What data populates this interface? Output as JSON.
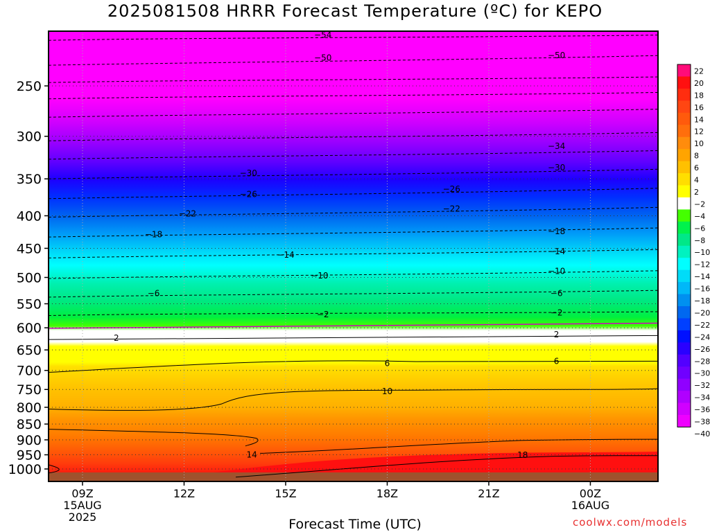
{
  "chart_data": {
    "type": "heatmap",
    "title": "2025081508 HRRR Forecast Temperature (ºC) for KEPO",
    "xlabel": "Forecast Time (UTC)",
    "ylabel": "",
    "x_ticks": [
      {
        "label": [
          "09Z",
          "15AUG",
          "2025"
        ],
        "hour": 9
      },
      {
        "label": [
          "12Z"
        ],
        "hour": 12
      },
      {
        "label": [
          "15Z"
        ],
        "hour": 15
      },
      {
        "label": [
          "18Z"
        ],
        "hour": 18
      },
      {
        "label": [
          "21Z"
        ],
        "hour": 21
      },
      {
        "label": [
          "00Z",
          "16AUG"
        ],
        "hour": 24
      }
    ],
    "y_ticks": [
      250,
      300,
      350,
      400,
      450,
      500,
      550,
      600,
      650,
      700,
      750,
      800,
      850,
      900,
      950,
      1000
    ],
    "colorbar": {
      "labels": [
        "22",
        "20",
        "18",
        "16",
        "14",
        "12",
        "10",
        "8",
        "6",
        "4",
        "2",
        "−2",
        "−4",
        "−6",
        "−8",
        "−10",
        "−12",
        "−14",
        "−16",
        "−18",
        "−20",
        "−22",
        "−24",
        "−26",
        "−28",
        "−30",
        "−32",
        "−34",
        "−36",
        "−38",
        "−40"
      ],
      "colors": [
        "#ff0c7a",
        "#ff1010",
        "#ff2d0f",
        "#ff4612",
        "#ff5a0c",
        "#ff6e0c",
        "#ff8c0c",
        "#ffa400",
        "#ffc000",
        "#ffde00",
        "#ffff00",
        "#ffffff",
        "#44ff00",
        "#00f24c",
        "#00e888",
        "#00f2c0",
        "#00ffff",
        "#00dcf8",
        "#00b8f8",
        "#0090f0",
        "#0068f0",
        "#0040ff",
        "#0010ff",
        "#2a00ff",
        "#5200ff",
        "#7000ff",
        "#9000ff",
        "#b000ff",
        "#d000ff",
        "#ee00ff"
      ]
    },
    "contour_labels": [
      {
        "text": "−54",
        "hour": 16.1,
        "p": 208
      },
      {
        "text": "−50",
        "hour": 16.1,
        "p": 226
      },
      {
        "text": "−50",
        "hour": 23.0,
        "p": 224
      },
      {
        "text": "−34",
        "hour": 23.0,
        "p": 311
      },
      {
        "text": "−30",
        "hour": 13.9,
        "p": 343
      },
      {
        "text": "−30",
        "hour": 23.0,
        "p": 336
      },
      {
        "text": "−26",
        "hour": 13.9,
        "p": 370
      },
      {
        "text": "−26",
        "hour": 19.9,
        "p": 363
      },
      {
        "text": "−22",
        "hour": 12.1,
        "p": 397
      },
      {
        "text": "−22",
        "hour": 19.9,
        "p": 390
      },
      {
        "text": "−18",
        "hour": 11.1,
        "p": 428
      },
      {
        "text": "−18",
        "hour": 23.0,
        "p": 423
      },
      {
        "text": "−14",
        "hour": 15.0,
        "p": 461
      },
      {
        "text": "−14",
        "hour": 23.0,
        "p": 455
      },
      {
        "text": "−10",
        "hour": 16.0,
        "p": 497
      },
      {
        "text": "−10",
        "hour": 23.0,
        "p": 489
      },
      {
        "text": "−6",
        "hour": 11.1,
        "p": 530
      },
      {
        "text": "−6",
        "hour": 23.0,
        "p": 530
      },
      {
        "text": "−2",
        "hour": 16.1,
        "p": 572
      },
      {
        "text": "−2",
        "hour": 23.0,
        "p": 568
      },
      {
        "text": "2",
        "hour": 10.0,
        "p": 623
      },
      {
        "text": "2",
        "hour": 23.0,
        "p": 615
      },
      {
        "text": "6",
        "hour": 18.0,
        "p": 682
      },
      {
        "text": "6",
        "hour": 23.0,
        "p": 677
      },
      {
        "text": "10",
        "hour": 18.0,
        "p": 755
      },
      {
        "text": "14",
        "hour": 14.0,
        "p": 950
      },
      {
        "text": "18",
        "hour": 22.0,
        "p": 951
      }
    ]
  },
  "credit": "coolwx.com/models"
}
